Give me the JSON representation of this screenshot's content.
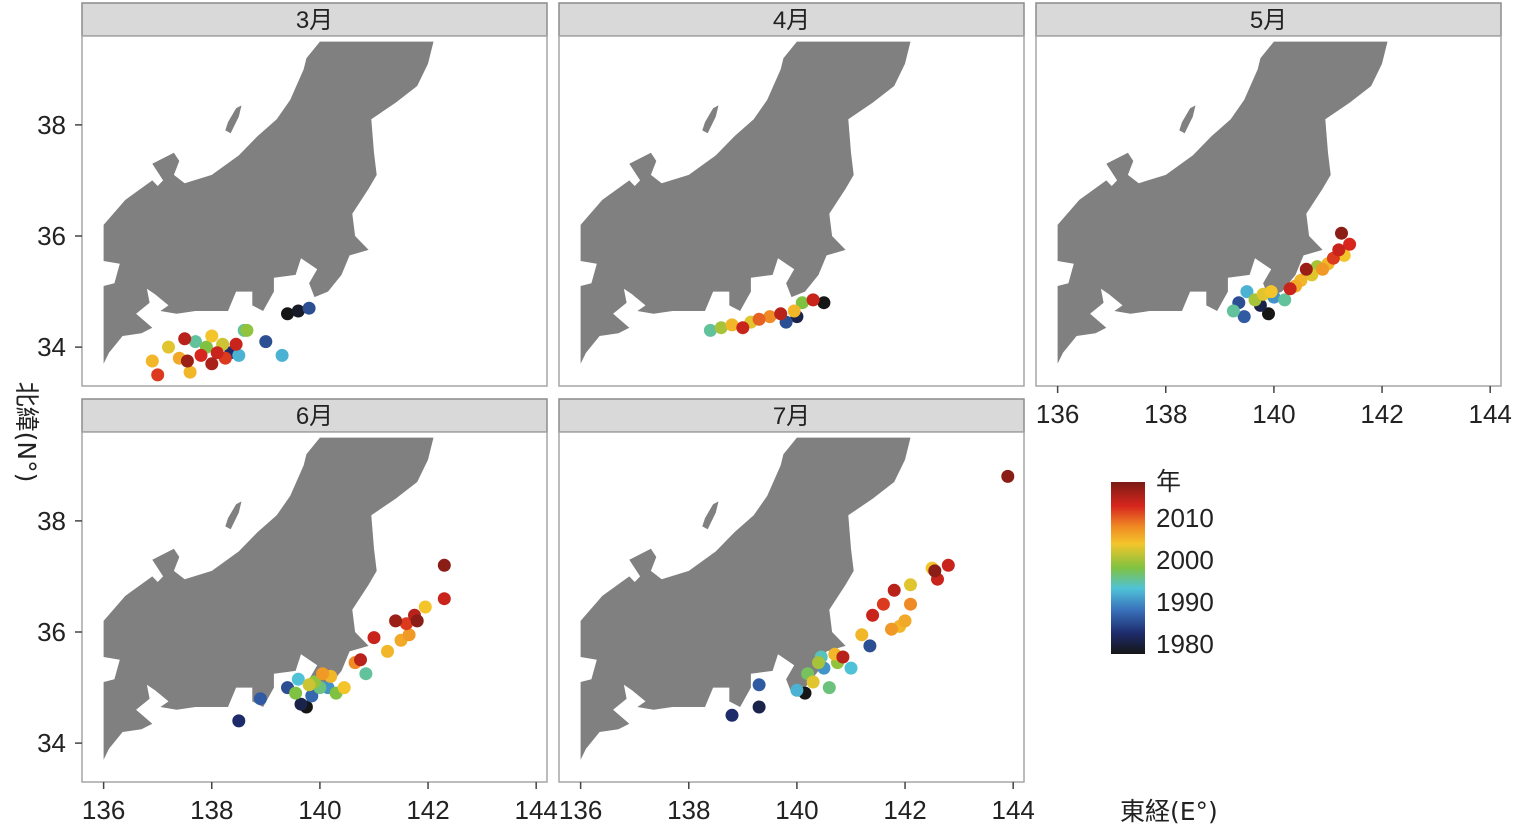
{
  "chart_data": {
    "type": "scatter",
    "facets": [
      {
        "label": "3月",
        "points": [
          {
            "x": 137.0,
            "y": 33.5,
            "year": 2010
          },
          {
            "x": 136.9,
            "y": 33.75,
            "year": 2003
          },
          {
            "x": 137.2,
            "y": 34.0,
            "year": 2001
          },
          {
            "x": 137.4,
            "y": 33.8,
            "year": 2004
          },
          {
            "x": 137.5,
            "y": 34.15,
            "year": 2013
          },
          {
            "x": 137.55,
            "y": 33.75,
            "year": 2015
          },
          {
            "x": 137.6,
            "y": 33.55,
            "year": 2003
          },
          {
            "x": 137.7,
            "y": 34.1,
            "year": 1993
          },
          {
            "x": 137.8,
            "y": 33.85,
            "year": 2011
          },
          {
            "x": 137.9,
            "y": 34.0,
            "year": 1996
          },
          {
            "x": 138.0,
            "y": 34.2,
            "year": 2002
          },
          {
            "x": 138.0,
            "y": 33.7,
            "year": 2014
          },
          {
            "x": 138.1,
            "y": 33.9,
            "year": 2012
          },
          {
            "x": 138.2,
            "y": 34.05,
            "year": 2000
          },
          {
            "x": 138.25,
            "y": 33.8,
            "year": 2010
          },
          {
            "x": 138.35,
            "y": 33.9,
            "year": 1980
          },
          {
            "x": 138.45,
            "y": 34.05,
            "year": 2012
          },
          {
            "x": 138.5,
            "y": 33.85,
            "year": 1990
          },
          {
            "x": 138.6,
            "y": 34.3,
            "year": 1993
          },
          {
            "x": 138.65,
            "y": 34.3,
            "year": 1997
          },
          {
            "x": 139.0,
            "y": 34.1,
            "year": 1983
          },
          {
            "x": 139.3,
            "y": 33.85,
            "year": 1990
          },
          {
            "x": 139.4,
            "y": 34.6,
            "year": 1975
          },
          {
            "x": 139.6,
            "y": 34.65,
            "year": 1976
          },
          {
            "x": 139.8,
            "y": 34.7,
            "year": 1983
          }
        ]
      },
      {
        "label": "4月",
        "points": [
          {
            "x": 138.4,
            "y": 34.3,
            "year": 1993
          },
          {
            "x": 138.6,
            "y": 34.35,
            "year": 1998
          },
          {
            "x": 138.8,
            "y": 34.4,
            "year": 2003
          },
          {
            "x": 139.0,
            "y": 34.35,
            "year": 2012
          },
          {
            "x": 139.15,
            "y": 34.45,
            "year": 2001
          },
          {
            "x": 139.3,
            "y": 34.5,
            "year": 2008
          },
          {
            "x": 139.5,
            "y": 34.55,
            "year": 2006
          },
          {
            "x": 139.7,
            "y": 34.6,
            "year": 2013
          },
          {
            "x": 139.8,
            "y": 34.45,
            "year": 1983
          },
          {
            "x": 139.95,
            "y": 34.65,
            "year": 2003
          },
          {
            "x": 140.0,
            "y": 34.55,
            "year": 1978
          },
          {
            "x": 140.1,
            "y": 34.8,
            "year": 1996
          },
          {
            "x": 140.3,
            "y": 34.85,
            "year": 2012
          },
          {
            "x": 140.5,
            "y": 34.8,
            "year": 1975
          }
        ]
      },
      {
        "label": "5月",
        "points": [
          {
            "x": 139.25,
            "y": 34.65,
            "year": 1993
          },
          {
            "x": 139.35,
            "y": 34.8,
            "year": 1983
          },
          {
            "x": 139.45,
            "y": 34.55,
            "year": 1984
          },
          {
            "x": 139.5,
            "y": 35.0,
            "year": 1990
          },
          {
            "x": 139.65,
            "y": 34.85,
            "year": 1998
          },
          {
            "x": 139.75,
            "y": 34.75,
            "year": 1978
          },
          {
            "x": 139.8,
            "y": 34.95,
            "year": 2001
          },
          {
            "x": 139.9,
            "y": 34.6,
            "year": 1975
          },
          {
            "x": 139.95,
            "y": 35.0,
            "year": 2002
          },
          {
            "x": 140.0,
            "y": 34.9,
            "year": 1988
          },
          {
            "x": 140.2,
            "y": 34.85,
            "year": 1993
          },
          {
            "x": 140.3,
            "y": 35.05,
            "year": 2012
          },
          {
            "x": 140.4,
            "y": 35.1,
            "year": 2004
          },
          {
            "x": 140.5,
            "y": 35.2,
            "year": 2003
          },
          {
            "x": 140.6,
            "y": 35.4,
            "year": 2015
          },
          {
            "x": 140.7,
            "y": 35.3,
            "year": 2001
          },
          {
            "x": 140.8,
            "y": 35.45,
            "year": 1998
          },
          {
            "x": 140.9,
            "y": 35.4,
            "year": 2005
          },
          {
            "x": 141.0,
            "y": 35.5,
            "year": 2003
          },
          {
            "x": 141.1,
            "y": 35.6,
            "year": 2010
          },
          {
            "x": 141.2,
            "y": 35.75,
            "year": 2012
          },
          {
            "x": 141.3,
            "y": 35.65,
            "year": 2002
          },
          {
            "x": 141.4,
            "y": 35.85,
            "year": 2011
          },
          {
            "x": 141.25,
            "y": 36.05,
            "year": 2016
          }
        ]
      },
      {
        "label": "6月",
        "points": [
          {
            "x": 138.5,
            "y": 34.4,
            "year": 1980
          },
          {
            "x": 138.9,
            "y": 34.8,
            "year": 1984
          },
          {
            "x": 139.4,
            "y": 35.0,
            "year": 1983
          },
          {
            "x": 139.55,
            "y": 34.9,
            "year": 1996
          },
          {
            "x": 139.6,
            "y": 35.15,
            "year": 1991
          },
          {
            "x": 139.65,
            "y": 34.7,
            "year": 1978
          },
          {
            "x": 139.75,
            "y": 34.65,
            "year": 1975
          },
          {
            "x": 139.8,
            "y": 35.05,
            "year": 2000
          },
          {
            "x": 139.85,
            "y": 34.85,
            "year": 1985
          },
          {
            "x": 139.9,
            "y": 35.1,
            "year": 1997
          },
          {
            "x": 140.0,
            "y": 35.0,
            "year": 1994
          },
          {
            "x": 140.05,
            "y": 35.25,
            "year": 2005
          },
          {
            "x": 140.15,
            "y": 35.0,
            "year": 1988
          },
          {
            "x": 140.2,
            "y": 35.2,
            "year": 2003
          },
          {
            "x": 140.3,
            "y": 34.9,
            "year": 1996
          },
          {
            "x": 140.45,
            "y": 35.0,
            "year": 2002
          },
          {
            "x": 140.65,
            "y": 35.45,
            "year": 2006
          },
          {
            "x": 140.75,
            "y": 35.5,
            "year": 2013
          },
          {
            "x": 140.85,
            "y": 35.25,
            "year": 1993
          },
          {
            "x": 141.0,
            "y": 35.9,
            "year": 2012
          },
          {
            "x": 141.25,
            "y": 35.65,
            "year": 2003
          },
          {
            "x": 141.4,
            "y": 36.2,
            "year": 2015
          },
          {
            "x": 141.5,
            "y": 35.85,
            "year": 2004
          },
          {
            "x": 141.6,
            "y": 36.15,
            "year": 2010
          },
          {
            "x": 141.65,
            "y": 35.95,
            "year": 2005
          },
          {
            "x": 141.75,
            "y": 36.3,
            "year": 2013
          },
          {
            "x": 141.8,
            "y": 36.2,
            "year": 2016
          },
          {
            "x": 141.95,
            "y": 36.45,
            "year": 2002
          },
          {
            "x": 142.3,
            "y": 36.6,
            "year": 2012
          },
          {
            "x": 142.3,
            "y": 37.2,
            "year": 2016
          }
        ]
      },
      {
        "label": "7月",
        "points": [
          {
            "x": 138.8,
            "y": 34.5,
            "year": 1980
          },
          {
            "x": 139.3,
            "y": 34.65,
            "year": 1978
          },
          {
            "x": 139.3,
            "y": 35.05,
            "year": 1984
          },
          {
            "x": 140.0,
            "y": 34.95,
            "year": 1990
          },
          {
            "x": 140.15,
            "y": 34.9,
            "year": 1975
          },
          {
            "x": 140.2,
            "y": 35.25,
            "year": 1995
          },
          {
            "x": 140.3,
            "y": 35.1,
            "year": 2001
          },
          {
            "x": 140.4,
            "y": 35.45,
            "year": 1998
          },
          {
            "x": 140.45,
            "y": 35.55,
            "year": 1992
          },
          {
            "x": 140.5,
            "y": 35.35,
            "year": 1988
          },
          {
            "x": 140.6,
            "y": 35.0,
            "year": 1994
          },
          {
            "x": 140.7,
            "y": 35.6,
            "year": 2003
          },
          {
            "x": 140.75,
            "y": 35.45,
            "year": 1997
          },
          {
            "x": 140.85,
            "y": 35.55,
            "year": 2013
          },
          {
            "x": 141.0,
            "y": 35.35,
            "year": 1991
          },
          {
            "x": 141.2,
            "y": 35.95,
            "year": 2003
          },
          {
            "x": 141.35,
            "y": 35.75,
            "year": 1983
          },
          {
            "x": 141.4,
            "y": 36.3,
            "year": 2012
          },
          {
            "x": 141.6,
            "y": 36.5,
            "year": 2010
          },
          {
            "x": 141.75,
            "y": 36.05,
            "year": 2005
          },
          {
            "x": 141.8,
            "y": 36.75,
            "year": 2013
          },
          {
            "x": 141.9,
            "y": 36.1,
            "year": 2003
          },
          {
            "x": 142.0,
            "y": 36.2,
            "year": 2004
          },
          {
            "x": 142.1,
            "y": 36.5,
            "year": 2006
          },
          {
            "x": 142.1,
            "y": 36.85,
            "year": 2001
          },
          {
            "x": 142.5,
            "y": 37.15,
            "year": 2002
          },
          {
            "x": 142.55,
            "y": 37.1,
            "year": 2016
          },
          {
            "x": 142.6,
            "y": 36.95,
            "year": 2012
          },
          {
            "x": 142.8,
            "y": 37.2,
            "year": 2012
          },
          {
            "x": 143.9,
            "y": 38.8,
            "year": 2016
          }
        ]
      }
    ],
    "xlabel": "東経(E°)",
    "ylabel": "北緯(N°)",
    "xlim": [
      135.6,
      144.2
    ],
    "ylim": [
      33.3,
      39.6
    ],
    "xticks": [
      "136",
      "138",
      "140",
      "142",
      "144"
    ],
    "yticks": [
      "34",
      "36",
      "38"
    ],
    "legend": {
      "title": "年",
      "labels": [
        "2010",
        "2000",
        "1990",
        "1980"
      ],
      "placement": "right",
      "colors": [
        "#7a1b14",
        "#d7261e",
        "#f08a24",
        "#f3c52b",
        "#7fc241",
        "#4fc2d8",
        "#3a73bd",
        "#1d2b6b",
        "#161616"
      ]
    },
    "grid": false,
    "colors": {
      "land": "#808080",
      "strip": "#d9d9d9",
      "panel_border": "#a6a6a6"
    }
  }
}
